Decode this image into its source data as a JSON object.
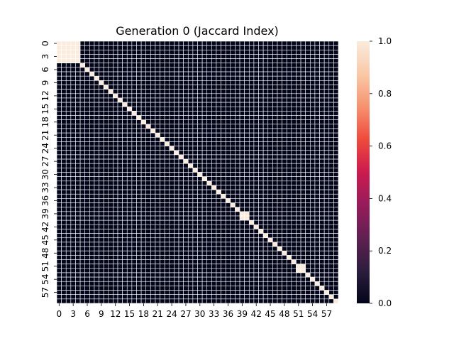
{
  "chart_data": {
    "type": "heatmap",
    "title": "Generation 0 (Jaccard Index)",
    "xlabel": "",
    "ylabel": "",
    "size": 60,
    "x_tick_labels": [
      "0",
      "3",
      "6",
      "9",
      "12",
      "15",
      "18",
      "21",
      "24",
      "27",
      "30",
      "33",
      "36",
      "39",
      "42",
      "45",
      "48",
      "51",
      "54",
      "57"
    ],
    "y_tick_labels": [
      "0",
      "3",
      "6",
      "9",
      "12",
      "15",
      "18",
      "21",
      "24",
      "27",
      "30",
      "33",
      "36",
      "39",
      "42",
      "45",
      "48",
      "51",
      "54",
      "57"
    ],
    "tick_step": 3,
    "default_value": 0.0,
    "diagonal_value": 1.0,
    "high_value_blocks": [
      {
        "rows": [
          0,
          4
        ],
        "cols": [
          0,
          4
        ],
        "value": 1.0
      },
      {
        "rows": [
          39,
          40
        ],
        "cols": [
          39,
          40
        ],
        "value": 1.0
      },
      {
        "rows": [
          51,
          52
        ],
        "cols": [
          51,
          52
        ],
        "value": 1.0
      }
    ],
    "colorbar": {
      "vmin": 0.0,
      "vmax": 1.0,
      "tick_labels": [
        "0.0",
        "0.2",
        "0.4",
        "0.6",
        "0.8",
        "1.0"
      ],
      "ticks": [
        0.0,
        0.2,
        0.4,
        0.6,
        0.8,
        1.0
      ],
      "colormap": "rocket",
      "colormap_stops": [
        "#03051a",
        "#2d1e3e",
        "#611f53",
        "#971c5b",
        "#cb1b4f",
        "#ef4a3c",
        "#f6926f",
        "#f9c9a8",
        "#faebdd"
      ]
    },
    "grid_line_color": "#ffffff"
  }
}
